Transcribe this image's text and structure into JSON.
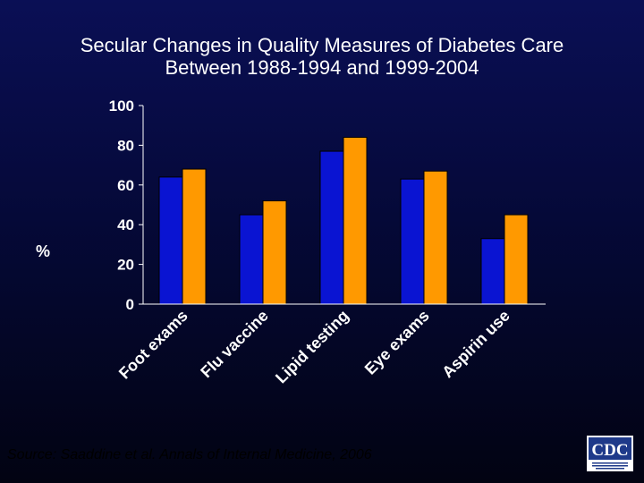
{
  "title_lines": [
    "Secular Changes in Quality Measures of Diabetes Care",
    "Between 1988-1994 and 1999-2004"
  ],
  "source": "Source: Saaddine et al. Annals of Internal Medicine, 2006",
  "logo": {
    "text": "CDC",
    "icon": "cdc-logo-icon"
  },
  "colors": {
    "series1": "#0a14d2",
    "series2": "#ff9900",
    "axis": "#ffffff"
  },
  "chart_data": {
    "type": "bar",
    "title": "Secular Changes in Quality Measures of Diabetes Care Between 1988-1994 and 1999-2004",
    "ylabel": "%",
    "xlabel": "",
    "ylim": [
      0,
      100
    ],
    "yticks": [
      "0",
      "20",
      "40",
      "60",
      "80",
      "100"
    ],
    "grid": false,
    "legend": "none",
    "categories": [
      "Foot exams",
      "Flu vaccine",
      "Lipid testing",
      "Eye exams",
      "Aspirin use"
    ],
    "series": [
      {
        "values": [
          64,
          45,
          77,
          63,
          33
        ]
      },
      {
        "values": [
          68,
          52,
          84,
          67,
          45
        ]
      }
    ]
  }
}
